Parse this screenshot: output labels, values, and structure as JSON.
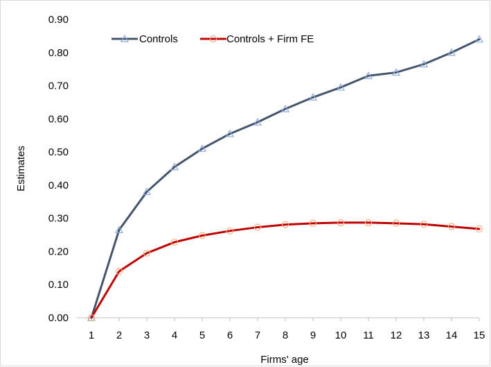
{
  "chart_data": {
    "type": "line",
    "title": "",
    "xlabel": "Firms' age",
    "ylabel": "Estimates",
    "categories": [
      "1",
      "2",
      "3",
      "4",
      "5",
      "6",
      "7",
      "8",
      "9",
      "10",
      "11",
      "12",
      "13",
      "14",
      "15"
    ],
    "ylim": [
      0,
      0.9
    ],
    "yticks": [
      "0.00",
      "0.10",
      "0.20",
      "0.30",
      "0.40",
      "0.50",
      "0.60",
      "0.70",
      "0.80",
      "0.90"
    ],
    "grid": false,
    "legend_position": "top-left",
    "series": [
      {
        "name": "Controls",
        "color": "#44546a",
        "marker": "triangle",
        "marker_color": "#8eaadb",
        "values": [
          0.0,
          0.265,
          0.38,
          0.455,
          0.51,
          0.555,
          0.59,
          0.63,
          0.665,
          0.695,
          0.73,
          0.74,
          0.765,
          0.8,
          0.84
        ]
      },
      {
        "name": "Controls + Firm FE",
        "color": "#c00000",
        "marker": "circle",
        "marker_color": "#f4b183",
        "values": [
          0.0,
          0.14,
          0.195,
          0.228,
          0.248,
          0.262,
          0.273,
          0.281,
          0.285,
          0.287,
          0.287,
          0.285,
          0.282,
          0.275,
          0.268
        ]
      }
    ]
  }
}
